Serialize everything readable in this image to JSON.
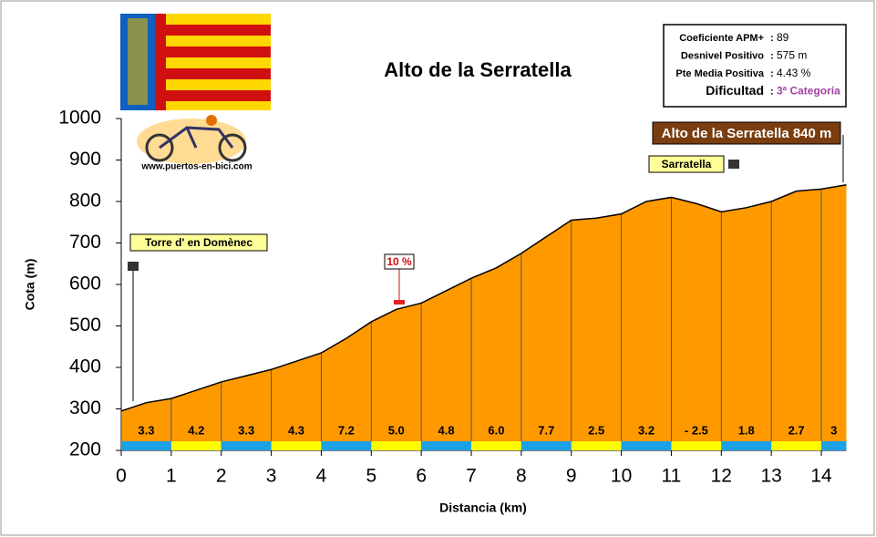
{
  "chart_data": {
    "type": "area",
    "title": "Alto de la Serratella",
    "xlabel": "Distancia (km)",
    "ylabel": "Cota (m)",
    "website": "www.puertos-en-bici.com",
    "x": [
      0,
      0.5,
      1,
      1.5,
      2,
      2.5,
      3,
      3.5,
      4,
      4.5,
      5,
      5.5,
      6,
      6.5,
      7,
      7.5,
      8,
      8.5,
      9,
      9.5,
      10,
      10.5,
      11,
      11.5,
      12,
      12.5,
      13,
      13.5,
      14,
      14.5
    ],
    "values": [
      295,
      315,
      325,
      345,
      365,
      380,
      395,
      415,
      435,
      470,
      510,
      540,
      555,
      585,
      615,
      640,
      675,
      715,
      755,
      760,
      770,
      800,
      810,
      795,
      775,
      785,
      800,
      825,
      830,
      840
    ],
    "color": "#ff9900",
    "segments": {
      "values": [
        3.3,
        4.2,
        3.3,
        4.3,
        7.2,
        5.0,
        4.8,
        6.0,
        7.7,
        2.5,
        3.2,
        -2.5,
        1.8,
        2.7,
        3
      ],
      "value_labels": [
        "3.3",
        "4.2",
        "3.3",
        "4.3",
        "7.2",
        "5.0",
        "4.8",
        "6.0",
        "7.7",
        "2.5",
        "3.2",
        "- 2.5",
        "1.8",
        "2.7",
        "3"
      ]
    },
    "xlim": [
      0,
      14.5
    ],
    "xticks": [
      0,
      1,
      2,
      3,
      4,
      5,
      6,
      7,
      8,
      9,
      10,
      11,
      12,
      13,
      14
    ],
    "ylim": [
      200,
      1000
    ],
    "yticks": [
      200,
      300,
      400,
      500,
      600,
      700,
      800,
      900,
      1000
    ],
    "annotations": [
      "Torre d' en Domènec",
      "Sarratella",
      "Alto de la Serratella 840 m",
      "10 %"
    ],
    "info": [
      {
        "label": "Coeficiente APM+",
        "value": "89"
      },
      {
        "label": "Desnivel Positivo",
        "value": "575 m"
      },
      {
        "label": "Pte Media Positiva",
        "value": "4.43 %"
      },
      {
        "label": "Dificultad",
        "value": "3ª Categoría"
      }
    ]
  }
}
